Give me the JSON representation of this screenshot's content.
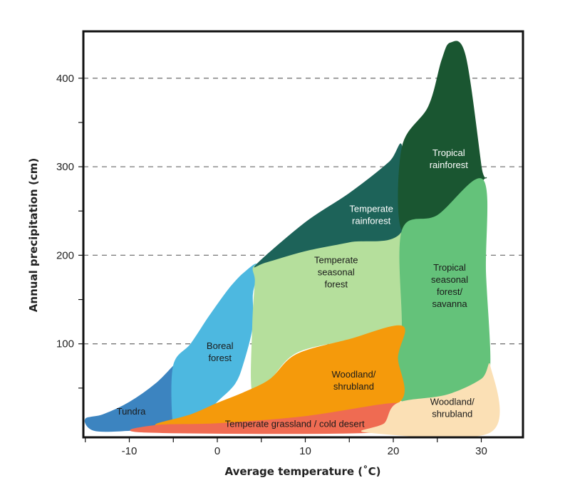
{
  "chart_data": {
    "type": "area",
    "title": "",
    "xlabel": "Average temperature (˚C)",
    "ylabel": "Annual precipitation (cm)",
    "xlim": [
      -15,
      35
    ],
    "ylim": [
      0,
      450
    ],
    "xticks": [
      "-10",
      "0",
      "10",
      "20",
      "30"
    ],
    "yticks": [
      "100",
      "200",
      "300",
      "400"
    ],
    "grid": "horizontal dashed",
    "regions": [
      {
        "name": "Tundra",
        "lines": [
          "Tundra"
        ],
        "color": "#3c84c0",
        "text_color": "#1a1a1a",
        "outline": [
          [
            -15,
            15
          ],
          [
            -13,
            20
          ],
          [
            -10,
            34
          ],
          [
            -7,
            55
          ],
          [
            -5,
            75
          ],
          [
            -4,
            85
          ],
          [
            -3,
            40
          ],
          [
            -4,
            25
          ],
          [
            -5,
            10
          ],
          [
            -7,
            5
          ],
          [
            -10,
            2
          ],
          [
            -14,
            2
          ]
        ],
        "label_at": [
          -9.8,
          23
        ]
      },
      {
        "name": "Boreal forest",
        "lines": [
          "Boreal",
          "forest"
        ],
        "color": "#4db8e0",
        "text_color": "#1a1a1a",
        "outline": [
          [
            -5,
            75
          ],
          [
            -3,
            100
          ],
          [
            -1,
            130
          ],
          [
            1,
            158
          ],
          [
            2,
            170
          ],
          [
            3,
            180
          ],
          [
            4.5,
            190
          ],
          [
            4.3,
            170
          ],
          [
            4,
            155
          ],
          [
            4,
            120
          ],
          [
            3,
            80
          ],
          [
            2,
            55
          ],
          [
            0,
            35
          ],
          [
            -2,
            15
          ],
          [
            -4,
            10
          ],
          [
            -5,
            8
          ]
        ],
        "label_at": [
          0.3,
          90
        ]
      },
      {
        "name": "Temperate seasonal forest",
        "lines": [
          "Temperate",
          "seasonal",
          "forest"
        ],
        "color": "#b5df9c",
        "text_color": "#1a1a1a",
        "outline": [
          [
            4.5,
            190
          ],
          [
            10,
            205
          ],
          [
            15,
            215
          ],
          [
            21,
            228
          ],
          [
            21,
            120
          ],
          [
            15,
            105
          ],
          [
            9,
            90
          ],
          [
            6,
            60
          ],
          [
            4,
            45
          ],
          [
            4,
            120
          ],
          [
            4.3,
            170
          ]
        ],
        "label_at": [
          13.5,
          180
        ]
      },
      {
        "name": "Temperate rainforest",
        "lines": [
          "Temperate",
          "rainforest"
        ],
        "color": "#1d6359",
        "text_color": "#ffffff",
        "outline": [
          [
            4.5,
            190
          ],
          [
            10,
            237
          ],
          [
            15,
            270
          ],
          [
            19.5,
            305
          ],
          [
            21,
            322
          ],
          [
            21,
            228
          ],
          [
            15,
            215
          ],
          [
            10,
            205
          ],
          [
            5.5,
            192
          ]
        ],
        "label_at": [
          17.5,
          245
        ]
      },
      {
        "name": "Tropical rainforest",
        "lines": [
          "Tropical",
          "rainforest"
        ],
        "color": "#1a5631",
        "text_color": "#ffffff",
        "outline": [
          [
            21,
            322
          ],
          [
            24,
            368
          ],
          [
            25.5,
            420
          ],
          [
            26.5,
            440
          ],
          [
            28.2,
            425
          ],
          [
            30,
            300
          ],
          [
            30.2,
            285
          ],
          [
            25,
            245
          ],
          [
            21,
            228
          ]
        ],
        "label_at": [
          26.3,
          308
        ]
      },
      {
        "name": "Tropical seasonal forest/savanna",
        "lines": [
          "Tropical",
          "seasonal",
          "forest/",
          "savanna"
        ],
        "color": "#64c27a",
        "text_color": "#1a1a1a",
        "outline": [
          [
            21,
            228
          ],
          [
            25,
            245
          ],
          [
            30.2,
            285
          ],
          [
            30.5,
            180
          ],
          [
            31,
            78
          ],
          [
            30,
            60
          ],
          [
            26,
            42
          ],
          [
            21,
            35
          ],
          [
            20.5,
            85
          ],
          [
            21,
            120
          ]
        ],
        "label_at": [
          26.4,
          165
        ]
      },
      {
        "name": "Woodland/shrubland",
        "lines": [
          "Woodland/",
          "shrubland"
        ],
        "color": "#f59a0b",
        "text_color": "#1a1a1a",
        "outline": [
          [
            21,
            120
          ],
          [
            15,
            105
          ],
          [
            9,
            88
          ],
          [
            6,
            60
          ],
          [
            3,
            45
          ],
          [
            0,
            33
          ],
          [
            -3,
            20
          ],
          [
            -7,
            8
          ],
          [
            0,
            10
          ],
          [
            10,
            18
          ],
          [
            20.5,
            33
          ],
          [
            20.5,
            85
          ]
        ],
        "label_at": [
          15.5,
          58
        ]
      },
      {
        "name": "Temperate grassland / cold desert",
        "lines": [
          "Temperate grassland / cold desert"
        ],
        "color": "#ef6b52",
        "text_color": "#1a1a1a",
        "outline": [
          [
            -7,
            8
          ],
          [
            0,
            10
          ],
          [
            10,
            18
          ],
          [
            20.5,
            33
          ],
          [
            20,
            15
          ],
          [
            18,
            0
          ],
          [
            -8,
            0
          ]
        ],
        "label_at": [
          8.8,
          9
        ]
      },
      {
        "name": "Woodland/shrubland (tropical)",
        "lines": [
          "Woodland/",
          "shrubland"
        ],
        "color": "#fbe0b5",
        "text_color": "#1a1a1a",
        "outline": [
          [
            20.5,
            33
          ],
          [
            26,
            42
          ],
          [
            30,
            60
          ],
          [
            31,
            75
          ],
          [
            31,
            0
          ],
          [
            17,
            0
          ],
          [
            19,
            10
          ]
        ],
        "label_at": [
          26.7,
          27
        ]
      }
    ]
  }
}
